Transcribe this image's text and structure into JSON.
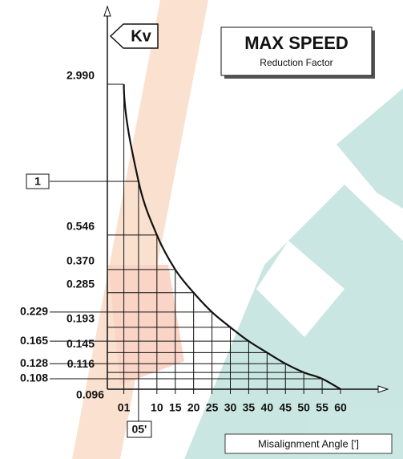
{
  "chart_data": {
    "type": "line",
    "title": "MAX SPEED",
    "subtitle": "Reduction Factor",
    "y_label": "Kv",
    "x_label": "Misalignment Angle [']",
    "log_y": true,
    "x": [
      1,
      5,
      10,
      15,
      20,
      25,
      30,
      35,
      40,
      45,
      50,
      55,
      60
    ],
    "series": [
      {
        "name": "Kv",
        "color": "#111111",
        "values": [
          2.99,
          1,
          0.546,
          0.37,
          0.285,
          0.229,
          0.193,
          0.165,
          0.145,
          0.128,
          0.116,
          0.108,
          0.096
        ]
      }
    ],
    "xlim": [
      0,
      60
    ],
    "ylim": [
      0.096,
      2.99
    ],
    "xticks": [
      {
        "value": 1,
        "label": "01"
      },
      {
        "value": 5,
        "label": "05'"
      },
      10,
      15,
      20,
      25,
      30,
      35,
      40,
      45,
      50,
      55,
      60
    ],
    "yticks": [
      {
        "value": 2.99,
        "label": "2.990"
      },
      1,
      0.546,
      {
        "value": 0.37,
        "label": "0.370"
      },
      0.285,
      0.229,
      0.193,
      0.165,
      0.145,
      0.128,
      0.116,
      0.108,
      0.096
    ],
    "grid": true
  }
}
